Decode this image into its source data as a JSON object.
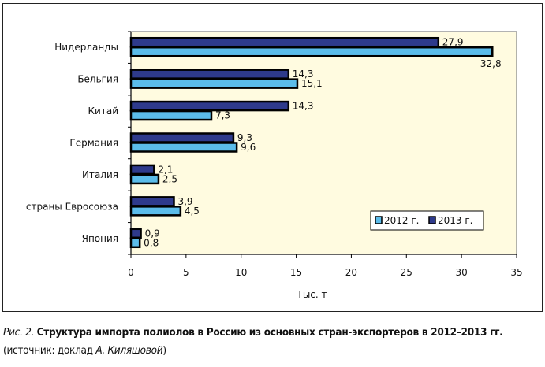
{
  "chart_data": {
    "type": "bar",
    "orientation": "horizontal",
    "categories": [
      "Нидерланды",
      "Бельгия",
      "Китай",
      "Германия",
      "Италия",
      "страны Евросоюза",
      "Япония"
    ],
    "series": [
      {
        "name": "2012 г.",
        "color": "#5bbcea",
        "values": [
          32.8,
          15.1,
          7.3,
          9.6,
          2.5,
          4.5,
          0.8
        ],
        "labels": [
          "32,8",
          "15,1",
          "7,3",
          "9,6",
          "2,5",
          "4,5",
          "0,8"
        ]
      },
      {
        "name": "2013 г.",
        "color": "#2e3a8c",
        "values": [
          27.9,
          14.3,
          14.3,
          9.3,
          2.1,
          3.9,
          0.9
        ],
        "labels": [
          "27,9",
          "14,3",
          "14,3",
          "9,3",
          "2,1",
          "3,9",
          "0,9"
        ]
      }
    ],
    "xlabel": "Тыс. т",
    "xlim": [
      0,
      35
    ],
    "xticks": [
      "0",
      "5",
      "10",
      "15",
      "20",
      "25",
      "30",
      "35"
    ],
    "xtick_values": [
      0,
      5,
      10,
      15,
      20,
      25,
      30,
      35
    ],
    "legend": "bottom-right",
    "plot_background": "#fffbe0"
  },
  "caption": {
    "fig_label": "Рис. 2.",
    "title": "Структура импорта полиолов в Россию из основных стран-экспортеров в 2012–2013 гг.",
    "source_prefix": "(источник: доклад ",
    "source_author": "А. Киляшовой",
    "source_suffix": ")"
  }
}
